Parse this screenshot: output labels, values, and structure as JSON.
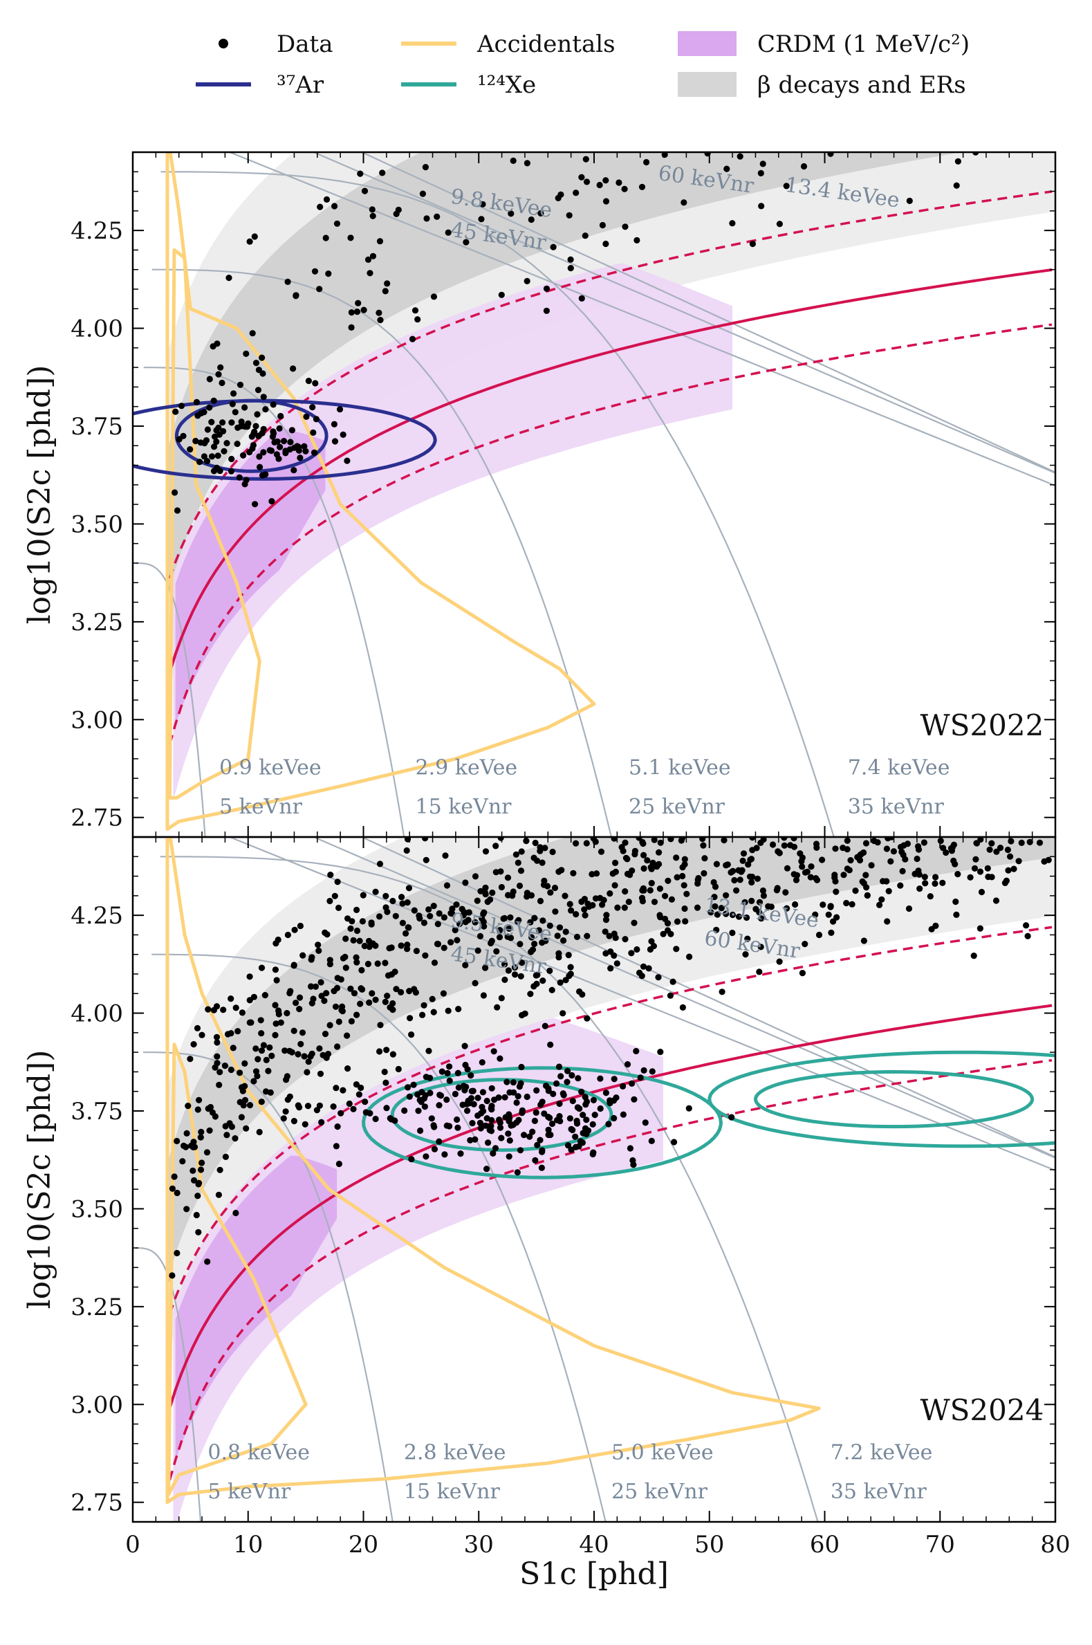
{
  "chart_data": {
    "type": "scatter",
    "xlabel": "S1c [phd]",
    "ylabel": "log10(S2c [phd])",
    "xlim": [
      0,
      80
    ],
    "ylim": [
      2.7,
      4.45
    ],
    "x_ticks": [
      "0",
      "10",
      "20",
      "30",
      "40",
      "50",
      "60",
      "70",
      "80"
    ],
    "y_ticks": [
      "2.75",
      "3.00",
      "3.25",
      "3.50",
      "3.75",
      "4.00",
      "4.25"
    ],
    "legend": [
      {
        "key": "data",
        "label": "Data",
        "color": "#000000"
      },
      {
        "key": "accidentals",
        "label": "Accidentals",
        "color": "#fdd27a"
      },
      {
        "key": "crdm",
        "label": "CRDM (1 MeV/c²)",
        "color": "#d9a8ee"
      },
      {
        "key": "ar37",
        "label": "³⁷Ar",
        "color": "#2a2f8f"
      },
      {
        "key": "xe124",
        "label": "¹²⁴Xe",
        "color": "#2fa89a"
      },
      {
        "key": "beta",
        "label": "β decays and ERs",
        "color": "#d6d6d6"
      }
    ],
    "colors": {
      "accidentals": "#fdd27a",
      "ar37": "#2a2f8f",
      "xe124": "#2fa89a",
      "crdm_light": "#ecd5f6",
      "crdm_dark": "#d9a8ee",
      "beta_light": "#ededed",
      "beta_dark": "#d2d2d2",
      "nr_median": "#d4114f",
      "iso": "#a7b1bc"
    },
    "panels": [
      {
        "label": "WS2022",
        "iso_labels_low": [
          {
            "ee": "0.9 keVee",
            "nr": "5 keVnr",
            "x": 7.5
          },
          {
            "ee": "2.9 keVee",
            "nr": "15 keVnr",
            "x": 24.5
          },
          {
            "ee": "5.1 keVee",
            "nr": "25 keVnr",
            "x": 43
          },
          {
            "ee": "7.4 keVee",
            "nr": "35 keVnr",
            "x": 62
          }
        ],
        "iso_labels_high": [
          {
            "ee": "9.8 keVee",
            "nr": "45 keVnr",
            "x": 27.5,
            "y": 4.32
          },
          {
            "ee": "60 keVnr",
            "nr": "",
            "x": 45.5,
            "y": 4.38
          },
          {
            "ee": "13.4 keVee",
            "nr": "",
            "x": 56.5,
            "y": 4.35
          }
        ],
        "data_points": 330,
        "has_ar37": true,
        "has_xe124": false
      },
      {
        "label": "WS2024",
        "iso_labels_low": [
          {
            "ee": "0.8 keVee",
            "nr": "5 keVnr",
            "x": 6.5
          },
          {
            "ee": "2.8 keVee",
            "nr": "15 keVnr",
            "x": 23.5
          },
          {
            "ee": "5.0 keVee",
            "nr": "25 keVnr",
            "x": 41.5
          },
          {
            "ee": "7.2 keVee",
            "nr": "35 keVnr",
            "x": 60.5
          }
        ],
        "iso_labels_high": [
          {
            "ee": "9.5 keVee",
            "nr": "45 keVnr",
            "x": 27.5,
            "y": 4.22
          },
          {
            "ee": "13.1 keVee",
            "nr": "60 keVnr",
            "x": 49.5,
            "y": 4.26
          }
        ],
        "data_points": 1300,
        "has_ar37": false,
        "has_xe124": true
      }
    ]
  }
}
